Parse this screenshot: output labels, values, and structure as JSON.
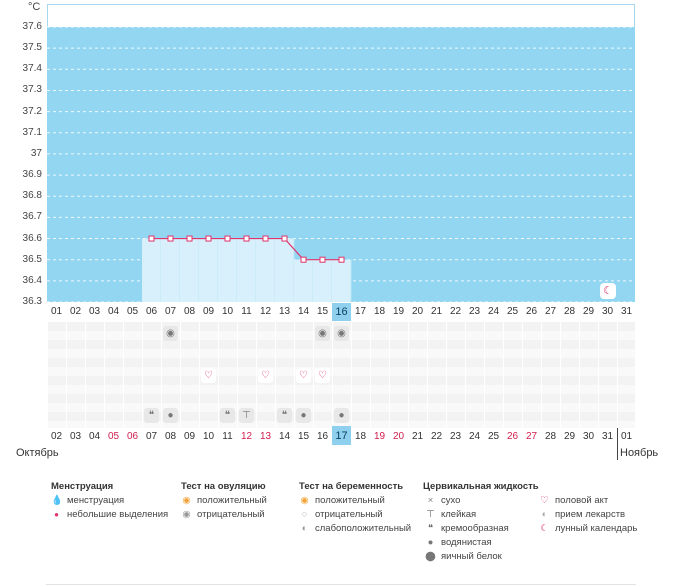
{
  "chart_data": {
    "type": "line",
    "unit": "°C",
    "y_tick_labels": [
      "37.6",
      "37.5",
      "37.4",
      "37.3",
      "37.2",
      "37.1",
      "37",
      "36.9",
      "36.8",
      "36.7",
      "36.6",
      "36.5",
      "36.4",
      "36.3"
    ],
    "ylim": [
      36.3,
      37.6
    ],
    "grid": true,
    "cycle_days": [
      "01",
      "02",
      "03",
      "04",
      "05",
      "06",
      "07",
      "08",
      "09",
      "10",
      "11",
      "12",
      "13",
      "14",
      "15",
      "16",
      "17",
      "18",
      "19",
      "20",
      "21",
      "22",
      "23",
      "24",
      "25",
      "26",
      "27",
      "28",
      "29",
      "30",
      "31"
    ],
    "highlight_cycle_day": "16",
    "series": [
      {
        "x": [
          "06",
          "07",
          "08",
          "09",
          "10",
          "11",
          "12",
          "13",
          "14",
          "15",
          "16"
        ],
        "values": [
          36.6,
          36.6,
          36.6,
          36.6,
          36.6,
          36.6,
          36.6,
          36.6,
          36.5,
          36.5,
          36.5
        ]
      }
    ],
    "dates": [
      "02",
      "03",
      "04",
      "05",
      "06",
      "07",
      "08",
      "09",
      "10",
      "11",
      "12",
      "13",
      "14",
      "15",
      "16",
      "17",
      "18",
      "19",
      "20",
      "21",
      "22",
      "23",
      "24",
      "25",
      "26",
      "27",
      "28",
      "29",
      "30",
      "31",
      "01"
    ],
    "red_dates": [
      "05",
      "06",
      "12",
      "13",
      "19",
      "20",
      "26",
      "27"
    ],
    "highlight_date": "17",
    "month_left": "Октябрь",
    "month_right": "Ноябрь",
    "marks": {
      "ovulation_negative_days": [
        "07",
        "15",
        "16"
      ],
      "intercourse_days": [
        "09",
        "12",
        "14",
        "15"
      ],
      "fluid_days": [
        {
          "day": "06",
          "icon": "creamy-icon"
        },
        {
          "day": "07",
          "icon": "watery-icon"
        },
        {
          "day": "10",
          "icon": "creamy-icon"
        },
        {
          "day": "11",
          "icon": "sticky-icon"
        },
        {
          "day": "13",
          "icon": "creamy-icon"
        },
        {
          "day": "14",
          "icon": "watery-icon"
        },
        {
          "day": "16",
          "icon": "watery-icon"
        }
      ],
      "lunar_day": "30"
    },
    "colors": {
      "plot_fill": "#92d6f2",
      "region_fill": "#d7f0fb",
      "line": "#e0336b",
      "highlight": "#8fd0ee"
    }
  },
  "legend": {
    "menstruation": {
      "title": "Менструация",
      "items": [
        "менструация",
        "небольшие выделения"
      ]
    },
    "ovulation": {
      "title": "Тест на овуляцию",
      "items": [
        "положительный",
        "отрицательный"
      ]
    },
    "pregnancy": {
      "title": "Тест на беременность",
      "items": [
        "положительный",
        "отрицательный",
        "слабоположительный"
      ]
    },
    "fluid": {
      "title": "Цервикальная жидкость",
      "items": [
        "сухо",
        "клейкая",
        "кремообразная",
        "водянистая",
        "яичный белок"
      ]
    },
    "other": {
      "items": [
        "половой акт",
        "прием лекарств",
        "лунный календарь"
      ]
    }
  }
}
